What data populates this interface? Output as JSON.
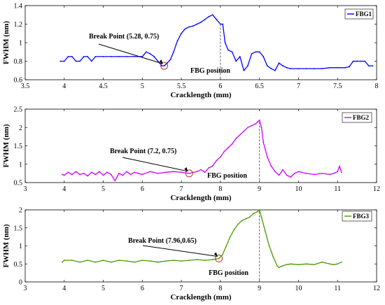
{
  "chart_data": [
    {
      "type": "line",
      "title": "",
      "xlabel": "Cracklength (mm)",
      "ylabel": "FWHM (nm)",
      "xlim": [
        3.5,
        8
      ],
      "ylim": [
        0.6,
        1.4
      ],
      "xticks": [
        3.5,
        4,
        4.5,
        5,
        5.5,
        6,
        6.5,
        7,
        7.5,
        8
      ],
      "yticks": [
        0.6,
        0.8,
        1,
        1.2,
        1.4
      ],
      "xtick_labels": [
        "3.5",
        "4",
        "4.5",
        "5",
        "5.5",
        "6",
        "6.5",
        "7",
        "7.5",
        "8"
      ],
      "ytick_labels": [
        "0.6",
        "0.8",
        "1",
        "1.2",
        "1.4"
      ],
      "grid": false,
      "legend_position": "top-right",
      "series": [
        {
          "name": "FBG1",
          "color": "#0000ff",
          "x": [
            3.95,
            4.0,
            4.05,
            4.1,
            4.15,
            4.2,
            4.25,
            4.3,
            4.35,
            4.4,
            4.5,
            4.6,
            4.7,
            4.8,
            4.9,
            5.0,
            5.05,
            5.1,
            5.15,
            5.2,
            5.25,
            5.28,
            5.32,
            5.36,
            5.4,
            5.45,
            5.5,
            5.55,
            5.6,
            5.65,
            5.7,
            5.75,
            5.8,
            5.85,
            5.9,
            5.95,
            6.0,
            6.03,
            6.06,
            6.1,
            6.15,
            6.2,
            6.25,
            6.3,
            6.35,
            6.4,
            6.45,
            6.5,
            6.55,
            6.6,
            6.65,
            6.7,
            6.75,
            6.8,
            6.85,
            6.9,
            7.0,
            7.1,
            7.2,
            7.3,
            7.4,
            7.5,
            7.6,
            7.65,
            7.7,
            7.75,
            7.8,
            7.85,
            7.9,
            7.95
          ],
          "y": [
            0.8,
            0.8,
            0.85,
            0.85,
            0.8,
            0.8,
            0.85,
            0.85,
            0.8,
            0.85,
            0.85,
            0.85,
            0.85,
            0.85,
            0.85,
            0.85,
            0.9,
            0.88,
            0.85,
            0.8,
            0.75,
            0.75,
            0.78,
            0.82,
            0.9,
            1.02,
            1.1,
            1.15,
            1.17,
            1.18,
            1.2,
            1.22,
            1.25,
            1.28,
            1.3,
            1.25,
            1.2,
            1.2,
            1.0,
            0.92,
            0.9,
            0.8,
            0.85,
            0.7,
            0.75,
            0.88,
            0.9,
            0.9,
            0.85,
            0.75,
            0.72,
            0.7,
            0.78,
            0.75,
            0.73,
            0.72,
            0.72,
            0.72,
            0.72,
            0.72,
            0.73,
            0.73,
            0.73,
            0.74,
            0.8,
            0.8,
            0.8,
            0.8,
            0.75,
            0.75
          ]
        }
      ],
      "annotations": [
        {
          "label": "Break Point (5.28, 0.75)",
          "x": 5.28,
          "y": 0.75
        },
        {
          "label": "FBG position",
          "x": 6.0
        }
      ]
    },
    {
      "type": "line",
      "title": "",
      "xlabel": "Cracklength (mm)",
      "ylabel": "FWHM (nm)",
      "xlim": [
        3,
        12
      ],
      "ylim": [
        0.5,
        2.5
      ],
      "xticks": [
        3,
        4,
        5,
        6,
        7,
        8,
        9,
        10,
        11,
        12
      ],
      "yticks": [
        0.5,
        1,
        1.5,
        2,
        2.5
      ],
      "xtick_labels": [
        "3",
        "4",
        "5",
        "6",
        "7",
        "8",
        "9",
        "10",
        "11",
        "12"
      ],
      "ytick_labels": [
        "0.5",
        "1",
        "1.5",
        "2",
        "2.5"
      ],
      "grid": false,
      "legend_position": "top-right",
      "series": [
        {
          "name": "FBG2",
          "color": "#cc00ff",
          "x": [
            3.95,
            4.0,
            4.1,
            4.2,
            4.3,
            4.4,
            4.5,
            4.6,
            4.7,
            4.8,
            4.9,
            5.0,
            5.1,
            5.2,
            5.3,
            5.4,
            5.5,
            5.6,
            5.7,
            5.8,
            5.9,
            6.0,
            6.2,
            6.4,
            6.6,
            6.8,
            7.0,
            7.2,
            7.4,
            7.5,
            7.6,
            7.7,
            7.8,
            7.9,
            8.0,
            8.1,
            8.2,
            8.3,
            8.4,
            8.5,
            8.6,
            8.7,
            8.8,
            8.9,
            8.95,
            9.0,
            9.05,
            9.1,
            9.2,
            9.3,
            9.4,
            9.5,
            9.6,
            9.7,
            9.8,
            9.9,
            10.0,
            10.2,
            10.4,
            10.6,
            10.8,
            10.9,
            11.0,
            11.05,
            11.1
          ],
          "y": [
            0.72,
            0.7,
            0.78,
            0.72,
            0.8,
            0.72,
            0.75,
            0.68,
            0.78,
            0.72,
            0.8,
            0.7,
            0.78,
            0.72,
            0.55,
            0.75,
            0.7,
            0.8,
            0.72,
            0.78,
            0.75,
            0.72,
            0.8,
            0.75,
            0.78,
            0.8,
            0.78,
            0.75,
            0.8,
            0.85,
            0.78,
            0.9,
            0.95,
            1.1,
            1.2,
            1.35,
            1.45,
            1.55,
            1.7,
            1.8,
            1.9,
            2.0,
            2.05,
            2.1,
            2.15,
            2.2,
            2.0,
            1.6,
            1.2,
            0.95,
            0.8,
            0.7,
            0.85,
            0.7,
            0.65,
            0.75,
            0.8,
            0.75,
            0.72,
            0.75,
            0.72,
            0.75,
            0.8,
            0.95,
            0.78
          ]
        }
      ],
      "annotations": [
        {
          "label": "Break Point (7.2, 0.75)",
          "x": 7.2,
          "y": 0.75
        },
        {
          "label": "FBG position",
          "x": 9.0
        }
      ]
    },
    {
      "type": "line",
      "title": "",
      "xlabel": "Cracklength (mm)",
      "ylabel": "FWHM (nm)",
      "xlim": [
        3,
        12
      ],
      "ylim": [
        0,
        2
      ],
      "xticks": [
        3,
        4,
        5,
        6,
        7,
        8,
        9,
        10,
        11,
        12
      ],
      "yticks": [
        0,
        0.5,
        1,
        1.5,
        2
      ],
      "xtick_labels": [
        "3",
        "4",
        "5",
        "6",
        "7",
        "8",
        "9",
        "10",
        "11",
        "12"
      ],
      "ytick_labels": [
        "0",
        "0.5",
        "1",
        "1.5",
        "2"
      ],
      "grid": false,
      "legend_position": "top-right",
      "series": [
        {
          "name": "FBG3",
          "color": "#4a9a00",
          "x": [
            3.95,
            4.0,
            4.2,
            4.4,
            4.6,
            4.8,
            5.0,
            5.2,
            5.4,
            5.6,
            5.8,
            6.0,
            6.2,
            6.4,
            6.6,
            6.8,
            7.0,
            7.2,
            7.4,
            7.6,
            7.8,
            7.96,
            8.05,
            8.15,
            8.25,
            8.35,
            8.45,
            8.55,
            8.65,
            8.75,
            8.85,
            8.95,
            9.0,
            9.05,
            9.15,
            9.25,
            9.35,
            9.45,
            9.5,
            9.6,
            9.7,
            9.8,
            10.0,
            10.2,
            10.4,
            10.6,
            10.8,
            10.9,
            11.0,
            11.1
          ],
          "y": [
            0.55,
            0.6,
            0.6,
            0.55,
            0.6,
            0.55,
            0.6,
            0.55,
            0.6,
            0.58,
            0.55,
            0.6,
            0.58,
            0.55,
            0.58,
            0.6,
            0.58,
            0.6,
            0.62,
            0.6,
            0.62,
            0.65,
            0.75,
            1.0,
            1.25,
            1.45,
            1.6,
            1.7,
            1.75,
            1.8,
            1.9,
            1.95,
            2.0,
            1.8,
            1.4,
            1.0,
            0.7,
            0.45,
            0.4,
            0.45,
            0.48,
            0.5,
            0.48,
            0.5,
            0.48,
            0.55,
            0.5,
            0.48,
            0.5,
            0.55
          ]
        }
      ],
      "annotations": [
        {
          "label": "Break Point (7.96,0.65)",
          "x": 7.96,
          "y": 0.65
        },
        {
          "label": "FBG position",
          "x": 9.0
        }
      ]
    }
  ]
}
